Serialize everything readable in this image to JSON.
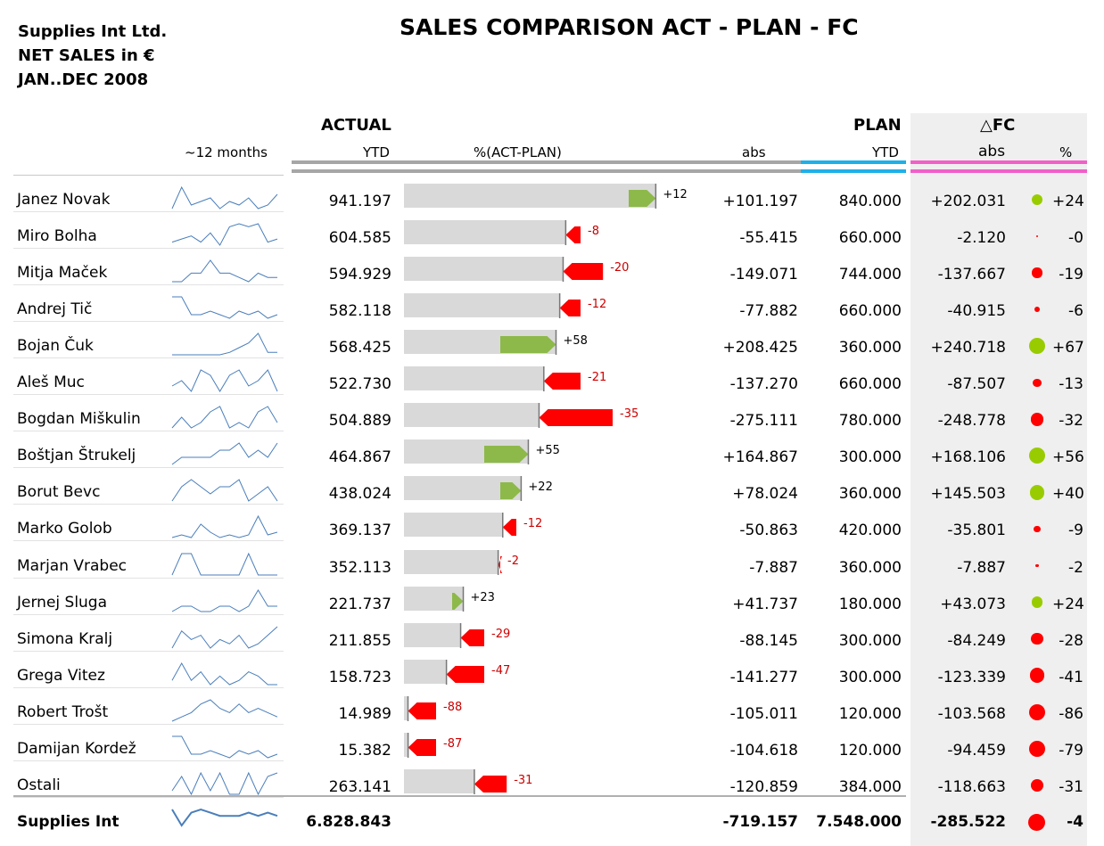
{
  "header": {
    "company_lines": [
      "Supplies Int Ltd.",
      "NET SALES in €",
      "JAN..DEC 2008"
    ],
    "title": "SALES COMPARISON ACT - PLAN - FC"
  },
  "columns": {
    "actual": "ACTUAL",
    "plan": "PLAN",
    "fc": "△FC",
    "sparkline": "~12 months",
    "ytd": "YTD",
    "pct_act_plan": "%(ACT-PLAN)",
    "abs": "abs",
    "plan_ytd": "YTD",
    "fc_abs": "abs",
    "fc_pct": "%"
  },
  "colors": {
    "actual_bar": "#a6a6a6",
    "plan_bar": "#1fb0e8",
    "fc_bar": "#f060c8",
    "positive": "#8db94a",
    "negative": "#ff0000",
    "fc_positive_dot": "#99cc00",
    "fc_negative_dot": "#ff0000",
    "sparkline": "#4a7ebb"
  },
  "rows": [
    {
      "name": "Janez Novak",
      "actual": "941.197",
      "pct": "+12",
      "abs": "+101.197",
      "plan": "840.000",
      "fc_abs": "+202.031",
      "fc_pct": "+24",
      "spark": [
        3,
        9,
        4,
        5,
        6,
        3,
        5,
        4,
        6,
        3,
        4,
        7
      ]
    },
    {
      "name": "Miro Bolha",
      "actual": "604.585",
      "pct": "-8",
      "abs": "-55.415",
      "plan": "660.000",
      "fc_abs": "-2.120",
      "fc_pct": "-0",
      "spark": [
        3,
        4,
        5,
        3,
        6,
        2,
        8,
        9,
        8,
        9,
        3,
        4
      ]
    },
    {
      "name": "Mitja Maček",
      "actual": "594.929",
      "pct": "-20",
      "abs": "-149.071",
      "plan": "744.000",
      "fc_abs": "-137.667",
      "fc_pct": "-19",
      "spark": [
        3,
        3,
        5,
        5,
        8,
        5,
        5,
        4,
        3,
        5,
        4,
        4
      ]
    },
    {
      "name": "Andrej Tič",
      "actual": "582.118",
      "pct": "-12",
      "abs": "-77.882",
      "plan": "660.000",
      "fc_abs": "-40.915",
      "fc_pct": "-6",
      "spark": [
        8,
        8,
        3,
        3,
        4,
        3,
        2,
        4,
        3,
        4,
        2,
        3
      ]
    },
    {
      "name": "Bojan Čuk",
      "actual": "568.425",
      "pct": "+58",
      "abs": "+208.425",
      "plan": "360.000",
      "fc_abs": "+240.718",
      "fc_pct": "+67",
      "spark": [
        2,
        2,
        2,
        2,
        2,
        2,
        3,
        5,
        7,
        11,
        3,
        3
      ]
    },
    {
      "name": "Aleš Muc",
      "actual": "522.730",
      "pct": "-21",
      "abs": "-137.270",
      "plan": "660.000",
      "fc_abs": "-87.507",
      "fc_pct": "-13",
      "spark": [
        3,
        4,
        2,
        6,
        5,
        2,
        5,
        6,
        3,
        4,
        6,
        2
      ]
    },
    {
      "name": "Bogdan Miškulin",
      "actual": "504.889",
      "pct": "-35",
      "abs": "-275.111",
      "plan": "780.000",
      "fc_abs": "-248.778",
      "fc_pct": "-32",
      "spark": [
        3,
        5,
        3,
        4,
        6,
        7,
        3,
        4,
        3,
        6,
        7,
        4
      ]
    },
    {
      "name": "Boštjan Štrukelj",
      "actual": "464.867",
      "pct": "+55",
      "abs": "+164.867",
      "plan": "300.000",
      "fc_abs": "+168.106",
      "fc_pct": "+56",
      "spark": [
        2,
        3,
        3,
        3,
        3,
        4,
        4,
        5,
        3,
        4,
        3,
        5
      ]
    },
    {
      "name": "Borut Bevc",
      "actual": "438.024",
      "pct": "+22",
      "abs": "+78.024",
      "plan": "360.000",
      "fc_abs": "+145.503",
      "fc_pct": "+40",
      "spark": [
        4,
        6,
        7,
        6,
        5,
        6,
        6,
        7,
        4,
        5,
        6,
        4
      ]
    },
    {
      "name": "Marko Golob",
      "actual": "369.137",
      "pct": "-12",
      "abs": "-50.863",
      "plan": "420.000",
      "fc_abs": "-35.801",
      "fc_pct": "-9",
      "spark": [
        3,
        4,
        3,
        8,
        5,
        3,
        4,
        3,
        4,
        11,
        4,
        5
      ]
    },
    {
      "name": "Marjan Vrabec",
      "actual": "352.113",
      "pct": "-2",
      "abs": "-7.887",
      "plan": "360.000",
      "fc_abs": "-7.887",
      "fc_pct": "-2",
      "spark": [
        4,
        5,
        5,
        4,
        4,
        4,
        4,
        4,
        5,
        4,
        4,
        4
      ]
    },
    {
      "name": "Jernej Sluga",
      "actual": "221.737",
      "pct": "+23",
      "abs": "+41.737",
      "plan": "180.000",
      "fc_abs": "+43.073",
      "fc_pct": "+24",
      "spark": [
        2,
        3,
        3,
        2,
        2,
        3,
        3,
        2,
        3,
        6,
        3,
        3
      ]
    },
    {
      "name": "Simona Kralj",
      "actual": "211.855",
      "pct": "-29",
      "abs": "-88.145",
      "plan": "300.000",
      "fc_abs": "-84.249",
      "fc_pct": "-28",
      "spark": [
        3,
        7,
        5,
        6,
        3,
        5,
        4,
        6,
        3,
        4,
        6,
        8
      ]
    },
    {
      "name": "Grega Vitez",
      "actual": "158.723",
      "pct": "-47",
      "abs": "-141.277",
      "plan": "300.000",
      "fc_abs": "-123.339",
      "fc_pct": "-41",
      "spark": [
        4,
        8,
        4,
        6,
        3,
        5,
        3,
        4,
        6,
        5,
        3,
        3
      ]
    },
    {
      "name": "Robert Trošt",
      "actual": "14.989",
      "pct": "-88",
      "abs": "-105.011",
      "plan": "120.000",
      "fc_abs": "-103.568",
      "fc_pct": "-86",
      "spark": [
        3,
        4,
        5,
        7,
        8,
        6,
        5,
        7,
        5,
        6,
        5,
        4
      ]
    },
    {
      "name": "Damijan Kordež",
      "actual": "15.382",
      "pct": "-87",
      "abs": "-104.618",
      "plan": "120.000",
      "fc_abs": "-94.459",
      "fc_pct": "-79",
      "spark": [
        8,
        8,
        3,
        3,
        4,
        3,
        2,
        4,
        3,
        4,
        2,
        3
      ]
    },
    {
      "name": "Ostali",
      "actual": "263.141",
      "pct": "-31",
      "abs": "-120.859",
      "plan": "384.000",
      "fc_abs": "-118.663",
      "fc_pct": "-31",
      "spark": [
        4,
        8,
        3,
        9,
        4,
        9,
        3,
        3,
        9,
        3,
        8,
        9
      ]
    }
  ],
  "total": {
    "name": "Supplies Int",
    "actual": "6.828.843",
    "abs": "-719.157",
    "plan": "7.548.000",
    "fc_abs": "-285.522",
    "fc_pct": "-4",
    "spark": [
      7,
      2,
      6,
      7,
      6,
      5,
      5,
      5,
      6,
      5,
      6,
      5
    ]
  },
  "chart_data": {
    "type": "bar",
    "title": "SALES COMPARISON ACT - PLAN - FC",
    "categories": [
      "Janez Novak",
      "Miro Bolha",
      "Mitja Maček",
      "Andrej Tič",
      "Bojan Čuk",
      "Aleš Muc",
      "Bogdan Miškulin",
      "Boštjan Štrukelj",
      "Borut Bevc",
      "Marko Golob",
      "Marjan Vrabec",
      "Jernej Sluga",
      "Simona Kralj",
      "Grega Vitez",
      "Robert Trošt",
      "Damijan Kordež",
      "Ostali"
    ],
    "series": [
      {
        "name": "ACTUAL",
        "values": [
          941197,
          604585,
          594929,
          582118,
          568425,
          522730,
          504889,
          464867,
          438024,
          369137,
          352113,
          221737,
          211855,
          158723,
          14989,
          15382,
          263141
        ]
      },
      {
        "name": "PLAN",
        "values": [
          840000,
          660000,
          744000,
          660000,
          360000,
          660000,
          780000,
          300000,
          360000,
          420000,
          360000,
          180000,
          300000,
          300000,
          120000,
          120000,
          384000
        ]
      },
      {
        "name": "%(ACT-PLAN)",
        "values": [
          12,
          -8,
          -20,
          -12,
          58,
          -21,
          -35,
          55,
          22,
          -12,
          -2,
          23,
          -29,
          -47,
          -88,
          -87,
          -31
        ]
      }
    ],
    "xlim": [
      0,
      1000000
    ]
  }
}
